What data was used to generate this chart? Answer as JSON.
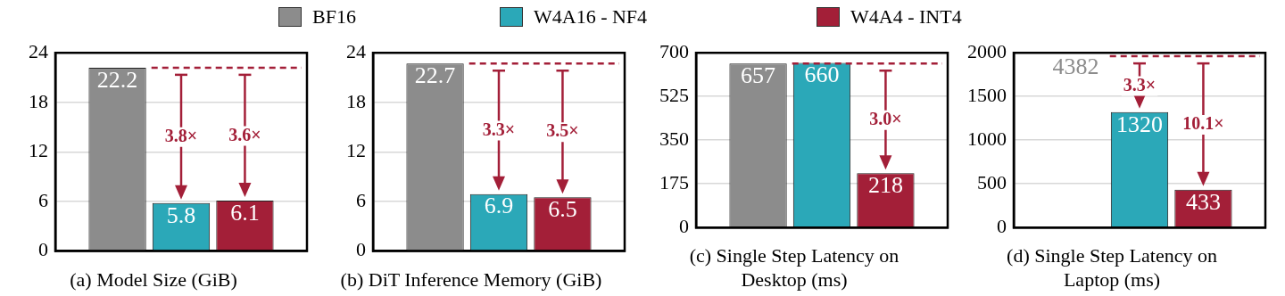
{
  "chart_data": [
    {
      "type": "bar",
      "title": "(a) Model Size (GiB)",
      "categories": [
        null
      ],
      "series": [
        {
          "name": "BF16",
          "color": "#8c8c8c",
          "values": [
            22.2
          ]
        },
        {
          "name": "W4A16 - NF4",
          "color": "#2ba8b8",
          "values": [
            5.8
          ]
        },
        {
          "name": "W4A4 - INT4",
          "color": "#a31f38",
          "values": [
            6.1
          ]
        }
      ],
      "ylim": [
        0,
        24
      ],
      "yticks": [
        0,
        6,
        12,
        18,
        24
      ],
      "grid": "y",
      "legend": "top",
      "tick_labels": "y",
      "data_labels": true,
      "ref_lines": [
        {
          "axis": "y",
          "value": 22.2,
          "color": "#a31f38",
          "line_style": "dashed"
        }
      ],
      "annotations": [
        "3.8×",
        "3.6×"
      ]
    },
    {
      "type": "bar",
      "title": "(b) DiT Inference Memory (GiB)",
      "categories": [
        null
      ],
      "series": [
        {
          "color": "#8c8c8c",
          "values": [
            22.7
          ]
        },
        {
          "color": "#2ba8b8",
          "values": [
            6.9
          ]
        },
        {
          "color": "#a31f38",
          "values": [
            6.5
          ]
        }
      ],
      "ylim": [
        0,
        24
      ],
      "yticks": [
        0,
        6,
        12,
        18,
        24
      ],
      "grid": "y",
      "tick_labels": "y",
      "data_labels": true,
      "ref_lines": [
        {
          "axis": "y",
          "value": 22.7,
          "color": "#a31f38",
          "line_style": "dashed"
        }
      ],
      "annotations": [
        "3.3×",
        "3.5×"
      ]
    },
    {
      "type": "bar",
      "title": "(c) Single Step Latency on Desktop (ms)",
      "categories": [
        null
      ],
      "series": [
        {
          "color": "#8c8c8c",
          "values": [
            657
          ]
        },
        {
          "color": "#2ba8b8",
          "values": [
            660
          ]
        },
        {
          "color": "#a31f38",
          "values": [
            218
          ]
        }
      ],
      "ylim": [
        0,
        700
      ],
      "yticks": [
        0,
        175,
        350,
        525,
        700
      ],
      "grid": "y",
      "tick_labels": "y",
      "data_labels": true,
      "ref_lines": [
        {
          "axis": "y",
          "value": 657,
          "color": "#a31f38",
          "line_style": "dashed"
        }
      ],
      "annotations": [
        "3.0×"
      ]
    },
    {
      "type": "bar",
      "title": "(d) Single Step Latency on Laptop (ms)",
      "categories": [
        null
      ],
      "series": [
        {
          "color": "#8c8c8c",
          "values": [
            null
          ],
          "value_labels": [
            "4382"
          ]
        },
        {
          "color": "#2ba8b8",
          "values": [
            1320
          ]
        },
        {
          "color": "#a31f38",
          "values": [
            433
          ]
        }
      ],
      "ylim": [
        0,
        2000
      ],
      "yticks": [
        0,
        500,
        1000,
        1500,
        2000
      ],
      "grid": "y",
      "tick_labels": "y",
      "data_labels": true,
      "ref_lines": [
        {
          "axis": "y",
          "value": 1960,
          "color": "#a31f38",
          "line_style": "dashed"
        }
      ],
      "annotations": [
        "3.3×",
        "10.1×"
      ]
    }
  ]
}
